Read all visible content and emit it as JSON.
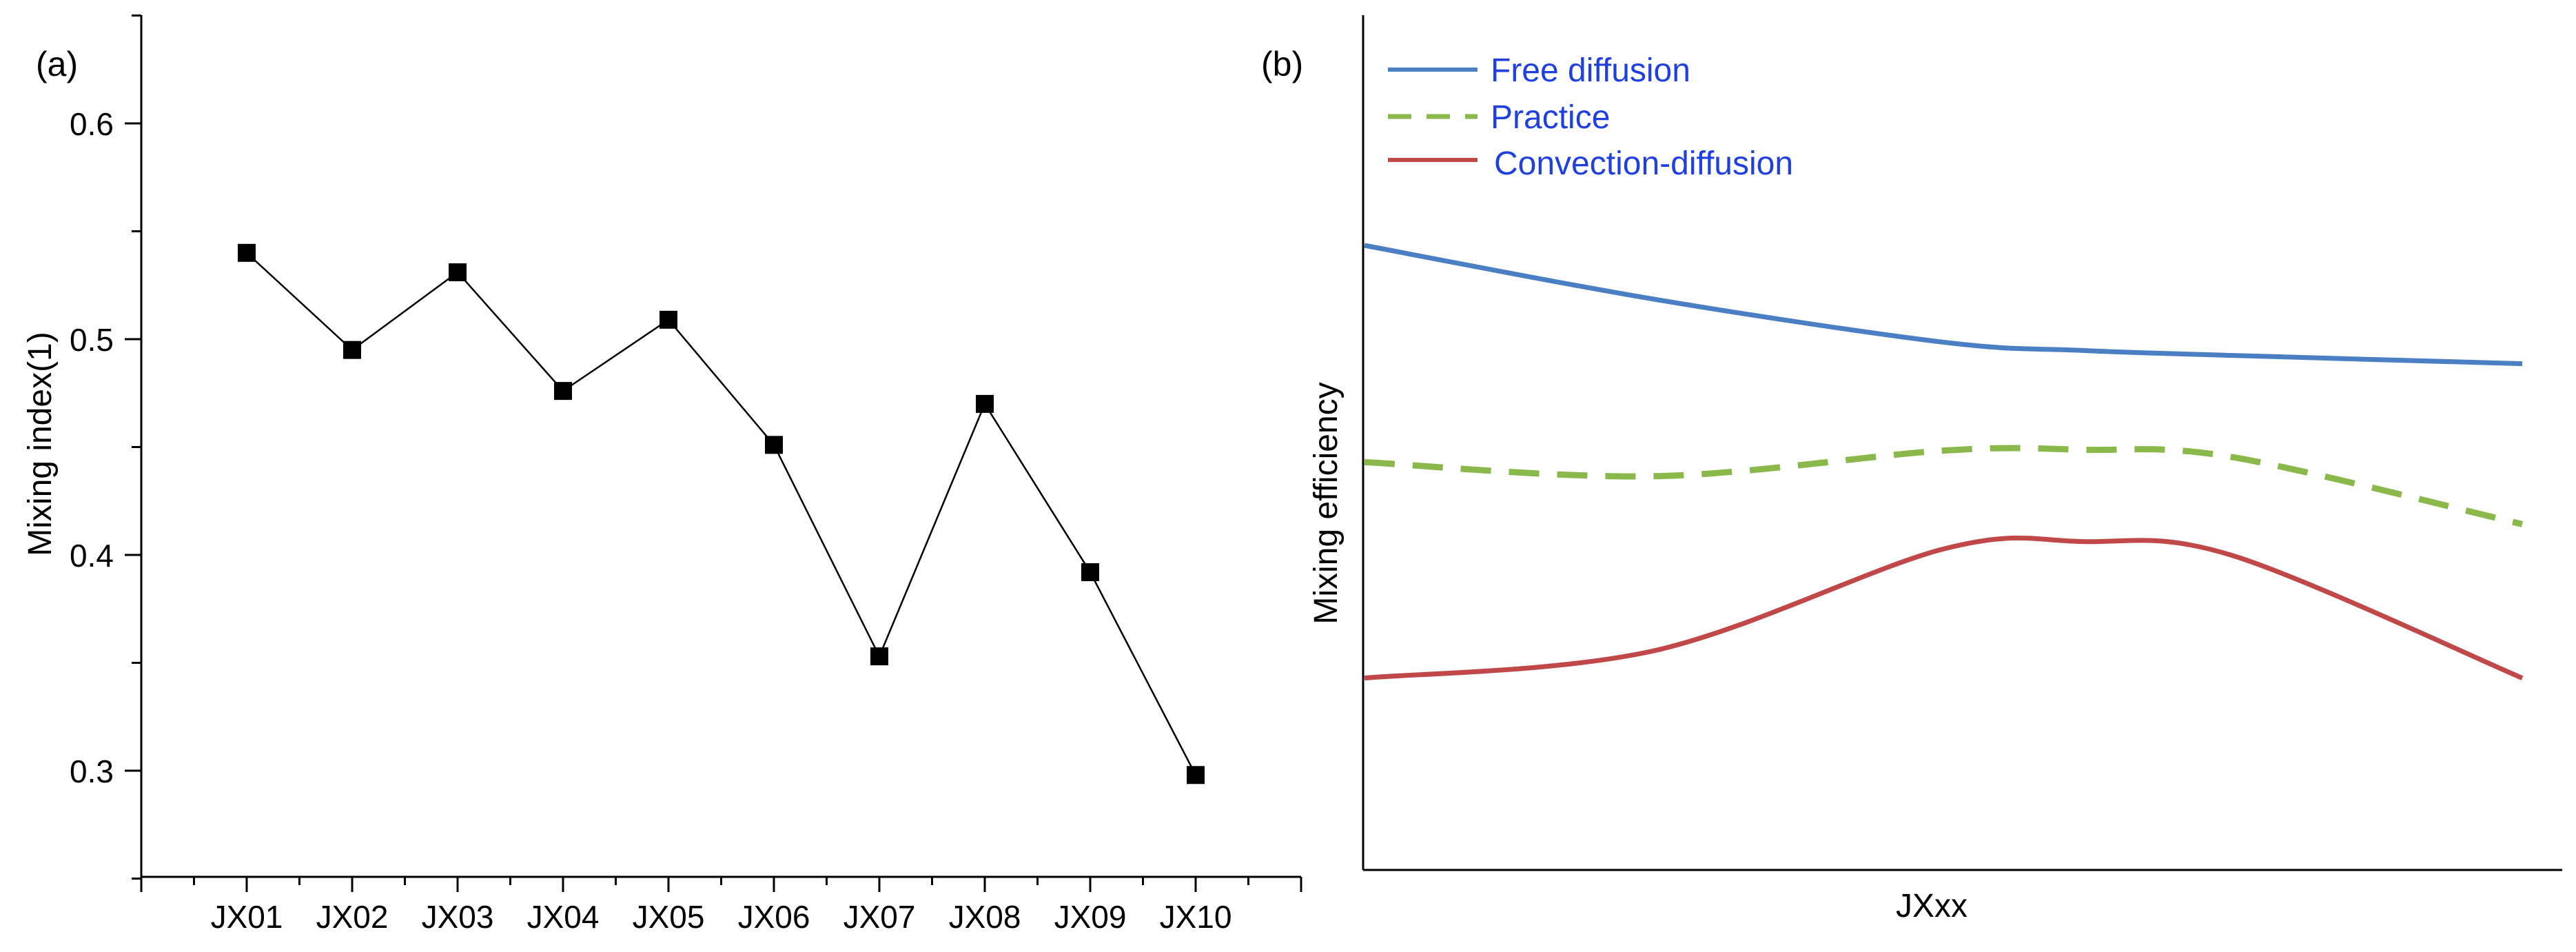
{
  "chart_data": [
    {
      "type": "line",
      "panel_label": "(a)",
      "title": "",
      "xlabel": "",
      "ylabel": "Mixing index(1)",
      "categories": [
        "JX01",
        "JX02",
        "JX03",
        "JX04",
        "JX05",
        "JX06",
        "JX07",
        "JX08",
        "JX09",
        "JX10"
      ],
      "series": [
        {
          "name": "Mixing index",
          "values": [
            0.54,
            0.495,
            0.531,
            0.476,
            0.509,
            0.451,
            0.353,
            0.47,
            0.392,
            0.298
          ],
          "color": "#000000",
          "marker": "square"
        }
      ],
      "ylim": [
        0.25,
        0.65
      ],
      "yticks": [
        0.3,
        0.4,
        0.5,
        0.6
      ],
      "ytick_labels": [
        "0.3",
        "0.4",
        "0.5",
        "0.6"
      ],
      "grid": false,
      "legend": "none"
    },
    {
      "type": "line",
      "panel_label": "(b)",
      "title": "",
      "xlabel": "JXxx",
      "ylabel": "Mixing efficiency",
      "x": [
        0,
        0.25,
        0.5,
        0.62,
        0.75,
        1.0
      ],
      "xlim": [
        0,
        1.03
      ],
      "ylim": [
        0,
        1
      ],
      "axis_ticks": false,
      "legend": "top-left",
      "series": [
        {
          "name": "Free diffusion",
          "style": "solid",
          "color": "#4a7fc4",
          "label_color": "#1f3fe0",
          "values": [
            0.755,
            0.69,
            0.638,
            0.628,
            0.622,
            0.612
          ]
        },
        {
          "name": "Practice",
          "style": "dashed",
          "color": "#8ab84a",
          "label_color": "#1f3fe0",
          "values": [
            0.493,
            0.476,
            0.507,
            0.508,
            0.499,
            0.418
          ]
        },
        {
          "name": "Convection-diffusion",
          "style": "solid",
          "color": "#c04848",
          "label_color": "#1f3fe0",
          "values": [
            0.232,
            0.265,
            0.388,
            0.397,
            0.38,
            0.232
          ]
        }
      ]
    }
  ]
}
